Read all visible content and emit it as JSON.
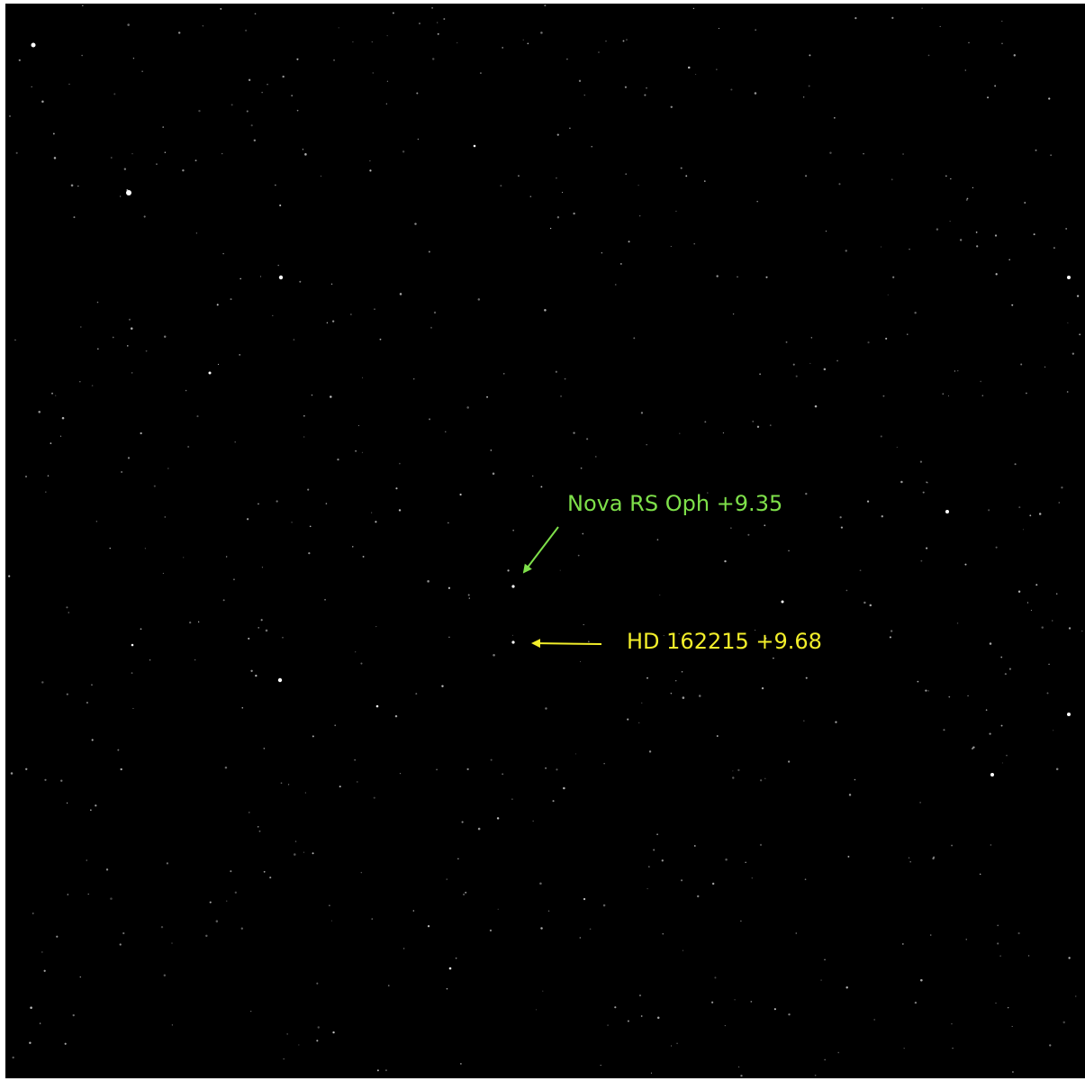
{
  "annotations": [
    {
      "label": "Nova RS Oph +9.35"
    },
    {
      "label": "HD 162215 +9.68"
    }
  ]
}
